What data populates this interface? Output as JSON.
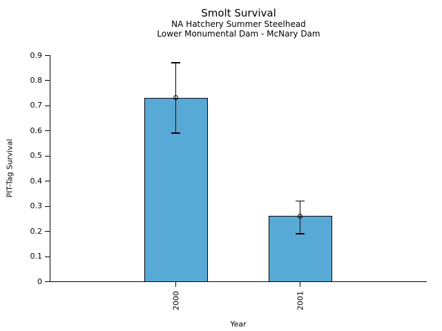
{
  "header": {
    "title": "Smolt Survival",
    "subtitle1": "NA Hatchery Summer Steelhead",
    "subtitle2": "Lower Monumental Dam - McNary Dam"
  },
  "chart_data": {
    "type": "bar",
    "title": "Smolt Survival",
    "subtitles": [
      "NA Hatchery Summer Steelhead",
      "Lower Monumental Dam - McNary Dam"
    ],
    "categories": [
      "2000",
      "2001"
    ],
    "values": [
      0.73,
      0.26
    ],
    "error_bars": [
      {
        "low": 0.59,
        "high": 0.87
      },
      {
        "low": 0.19,
        "high": 0.32
      }
    ],
    "xlabel": "Year",
    "ylabel": "PIT-Tag Survival",
    "ylim": [
      0,
      0.9
    ],
    "yticks": [
      0,
      0.1,
      0.2,
      0.3,
      0.4,
      0.5,
      0.6,
      0.7,
      0.8,
      0.9
    ],
    "ytick_labels": [
      "0",
      "0.1",
      "0.2",
      "0.3",
      "0.4",
      "0.5",
      "0.6",
      "0.7",
      "0.8",
      "0.9"
    ],
    "xtick_rotation_deg": 90,
    "marker": "open-circle",
    "grid": false,
    "legend": false,
    "colors": {
      "bar_fill": "#57aad6",
      "bar_edge": "#000000",
      "error_bar": "#000000",
      "axis": "#000000",
      "text": "#000000",
      "background": "#ffffff"
    }
  }
}
